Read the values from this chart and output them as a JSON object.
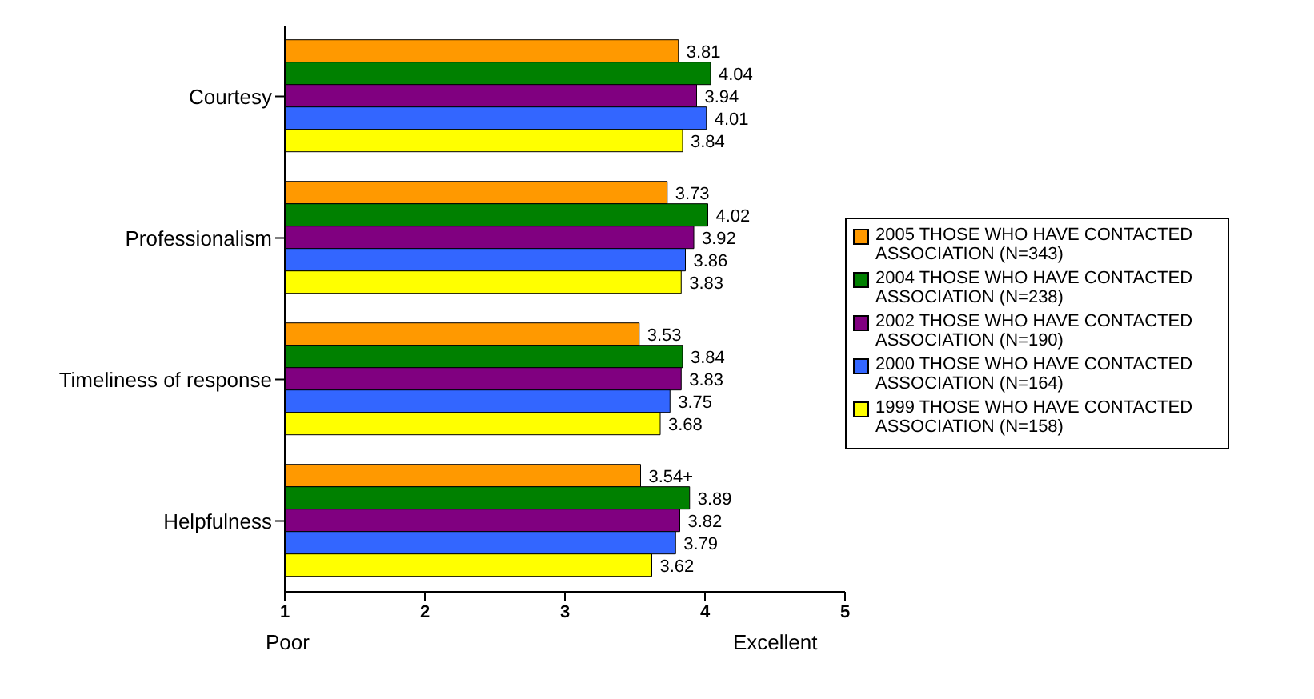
{
  "chart_data": {
    "type": "bar",
    "orientation": "horizontal",
    "categories": [
      "Courtesy",
      "Professionalism",
      "Timeliness of response",
      "Helpfulness"
    ],
    "series": [
      {
        "name": "2005 THOSE WHO HAVE CONTACTED ASSOCIATION (N=343)",
        "color": "#ff9900",
        "values": [
          3.81,
          3.73,
          3.53,
          3.54
        ],
        "value_labels": [
          "3.81",
          "3.73",
          "3.53",
          "3.54+"
        ]
      },
      {
        "name": "2004 THOSE WHO HAVE CONTACTED ASSOCIATION (N=238)",
        "color": "#008000",
        "values": [
          4.04,
          4.02,
          3.84,
          3.89
        ],
        "value_labels": [
          "4.04",
          "4.02",
          "3.84",
          "3.89"
        ]
      },
      {
        "name": "2002 THOSE WHO HAVE CONTACTED ASSOCIATION (N=190)",
        "color": "#800080",
        "values": [
          3.94,
          3.92,
          3.83,
          3.82
        ],
        "value_labels": [
          "3.94",
          "3.92",
          "3.83",
          "3.82"
        ]
      },
      {
        "name": "2000 THOSE WHO HAVE CONTACTED ASSOCIATION (N=164)",
        "color": "#3366ff",
        "values": [
          4.01,
          3.86,
          3.75,
          3.79
        ],
        "value_labels": [
          "4.01",
          "3.86",
          "3.75",
          "3.79"
        ]
      },
      {
        "name": "1999 THOSE WHO HAVE CONTACTED ASSOCIATION (N=158)",
        "color": "#ffff00",
        "values": [
          3.84,
          3.83,
          3.68,
          3.62
        ],
        "value_labels": [
          "3.84",
          "3.83",
          "3.68",
          "3.62"
        ]
      }
    ],
    "xlim": [
      1,
      5
    ],
    "xticks": [
      1,
      2,
      3,
      4,
      5
    ],
    "annotations": [
      "Poor",
      "Excellent"
    ],
    "legend": "right"
  }
}
